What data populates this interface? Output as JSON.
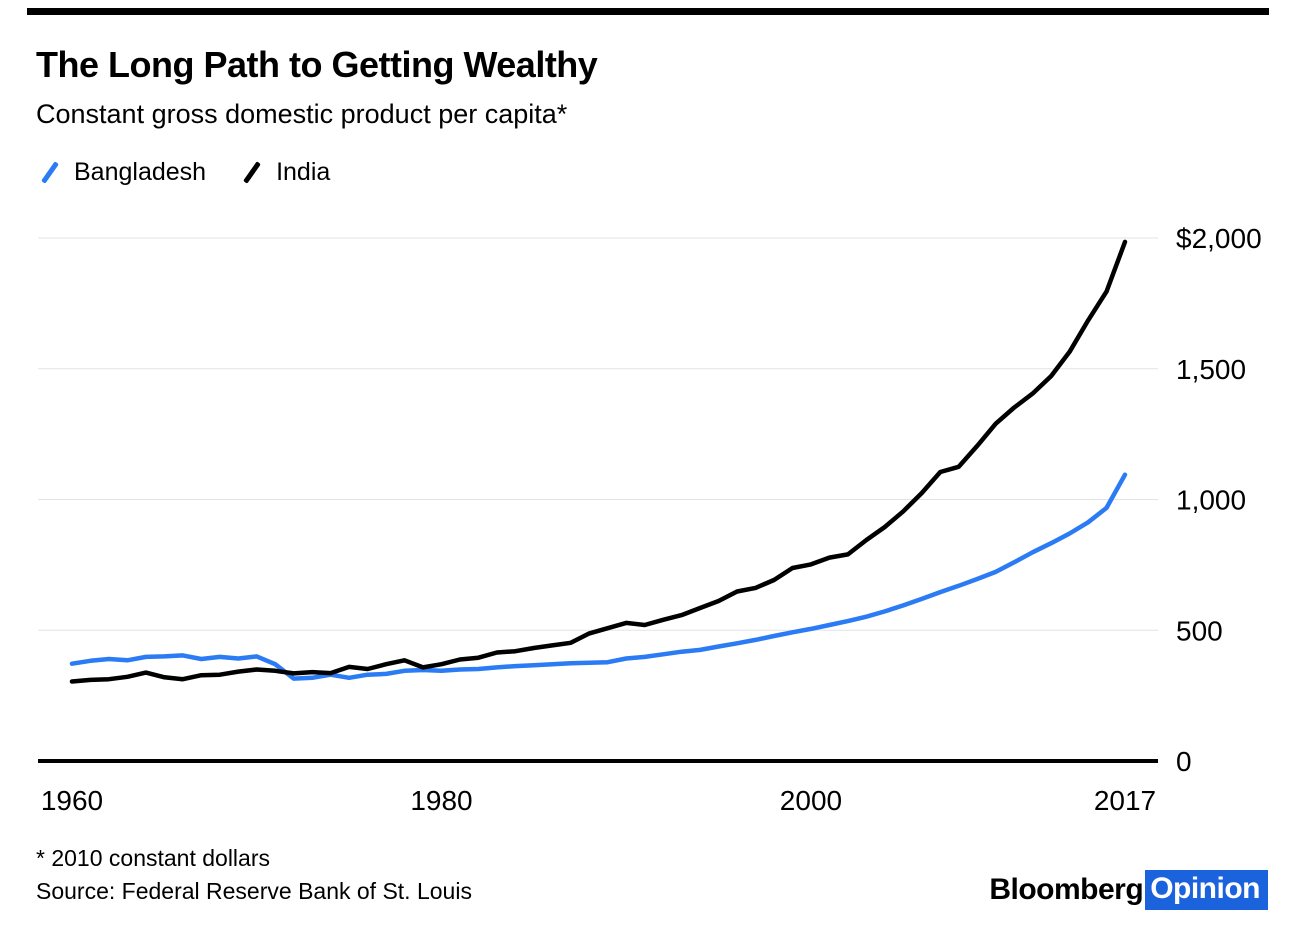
{
  "header": {
    "title": "The Long Path to Getting Wealthy",
    "subtitle": "Constant gross domestic product per capita*"
  },
  "legend": {
    "items": [
      {
        "label": "Bangladesh",
        "color": "#2b7bf4"
      },
      {
        "label": "India",
        "color": "#000000"
      }
    ]
  },
  "chart_data": {
    "type": "line",
    "title": "The Long Path to Getting Wealthy",
    "subtitle": "Constant gross domestic product per capita*",
    "xlabel": "",
    "ylabel": "2010 constant dollars",
    "xlim": [
      1960,
      2017
    ],
    "ylim": [
      0,
      2000
    ],
    "grid": "horizontal",
    "legend_position": "top-left",
    "x_ticks": [
      {
        "value": 1960,
        "label": "1960"
      },
      {
        "value": 1980,
        "label": "1980"
      },
      {
        "value": 2000,
        "label": "2000"
      },
      {
        "value": 2017,
        "label": "2017"
      }
    ],
    "y_ticks": [
      {
        "value": 0,
        "label": "0"
      },
      {
        "value": 500,
        "label": "500"
      },
      {
        "value": 1000,
        "label": "1,000"
      },
      {
        "value": 1500,
        "label": "1,500"
      },
      {
        "value": 2000,
        "label": "$2,000"
      }
    ],
    "x": [
      1960,
      1961,
      1962,
      1963,
      1964,
      1965,
      1966,
      1967,
      1968,
      1969,
      1970,
      1971,
      1972,
      1973,
      1974,
      1975,
      1976,
      1977,
      1978,
      1979,
      1980,
      1981,
      1982,
      1983,
      1984,
      1985,
      1986,
      1987,
      1988,
      1989,
      1990,
      1991,
      1992,
      1993,
      1994,
      1995,
      1996,
      1997,
      1998,
      1999,
      2000,
      2001,
      2002,
      2003,
      2004,
      2005,
      2006,
      2007,
      2008,
      2009,
      2010,
      2011,
      2012,
      2013,
      2014,
      2015,
      2016,
      2017
    ],
    "series": [
      {
        "name": "Bangladesh",
        "color": "#2b7bf4",
        "values": [
          372,
          383,
          390,
          385,
          398,
          400,
          404,
          390,
          398,
          392,
          400,
          370,
          315,
          318,
          330,
          318,
          330,
          333,
          345,
          348,
          345,
          350,
          352,
          358,
          363,
          366,
          370,
          374,
          376,
          378,
          392,
          398,
          408,
          418,
          425,
          438,
          450,
          463,
          478,
          492,
          505,
          520,
          535,
          552,
          572,
          595,
          620,
          646,
          670,
          696,
          723,
          760,
          798,
          833,
          870,
          913,
          968,
          1095
        ]
      },
      {
        "name": "India",
        "color": "#000000",
        "values": [
          304,
          310,
          313,
          322,
          338,
          320,
          313,
          328,
          330,
          342,
          350,
          345,
          335,
          340,
          336,
          360,
          352,
          370,
          385,
          358,
          370,
          388,
          395,
          415,
          420,
          432,
          442,
          452,
          488,
          508,
          528,
          520,
          540,
          558,
          585,
          612,
          648,
          662,
          692,
          738,
          752,
          778,
          790,
          845,
          895,
          955,
          1025,
          1105,
          1125,
          1205,
          1290,
          1352,
          1405,
          1472,
          1565,
          1685,
          1795,
          1985
        ]
      }
    ]
  },
  "footer": {
    "note": "* 2010 constant dollars",
    "source": "Source: Federal Reserve Bank of St. Louis",
    "logo": {
      "black": "Bloomberg",
      "blue": "Opinion",
      "blue_bg": "#1b62dd"
    }
  },
  "colors": {
    "bangladesh_line": "#2b7bf4",
    "india_line": "#000000",
    "gridline": "#e3e3e3",
    "axis": "#000000",
    "logo_blue_bg": "#1b62dd"
  }
}
